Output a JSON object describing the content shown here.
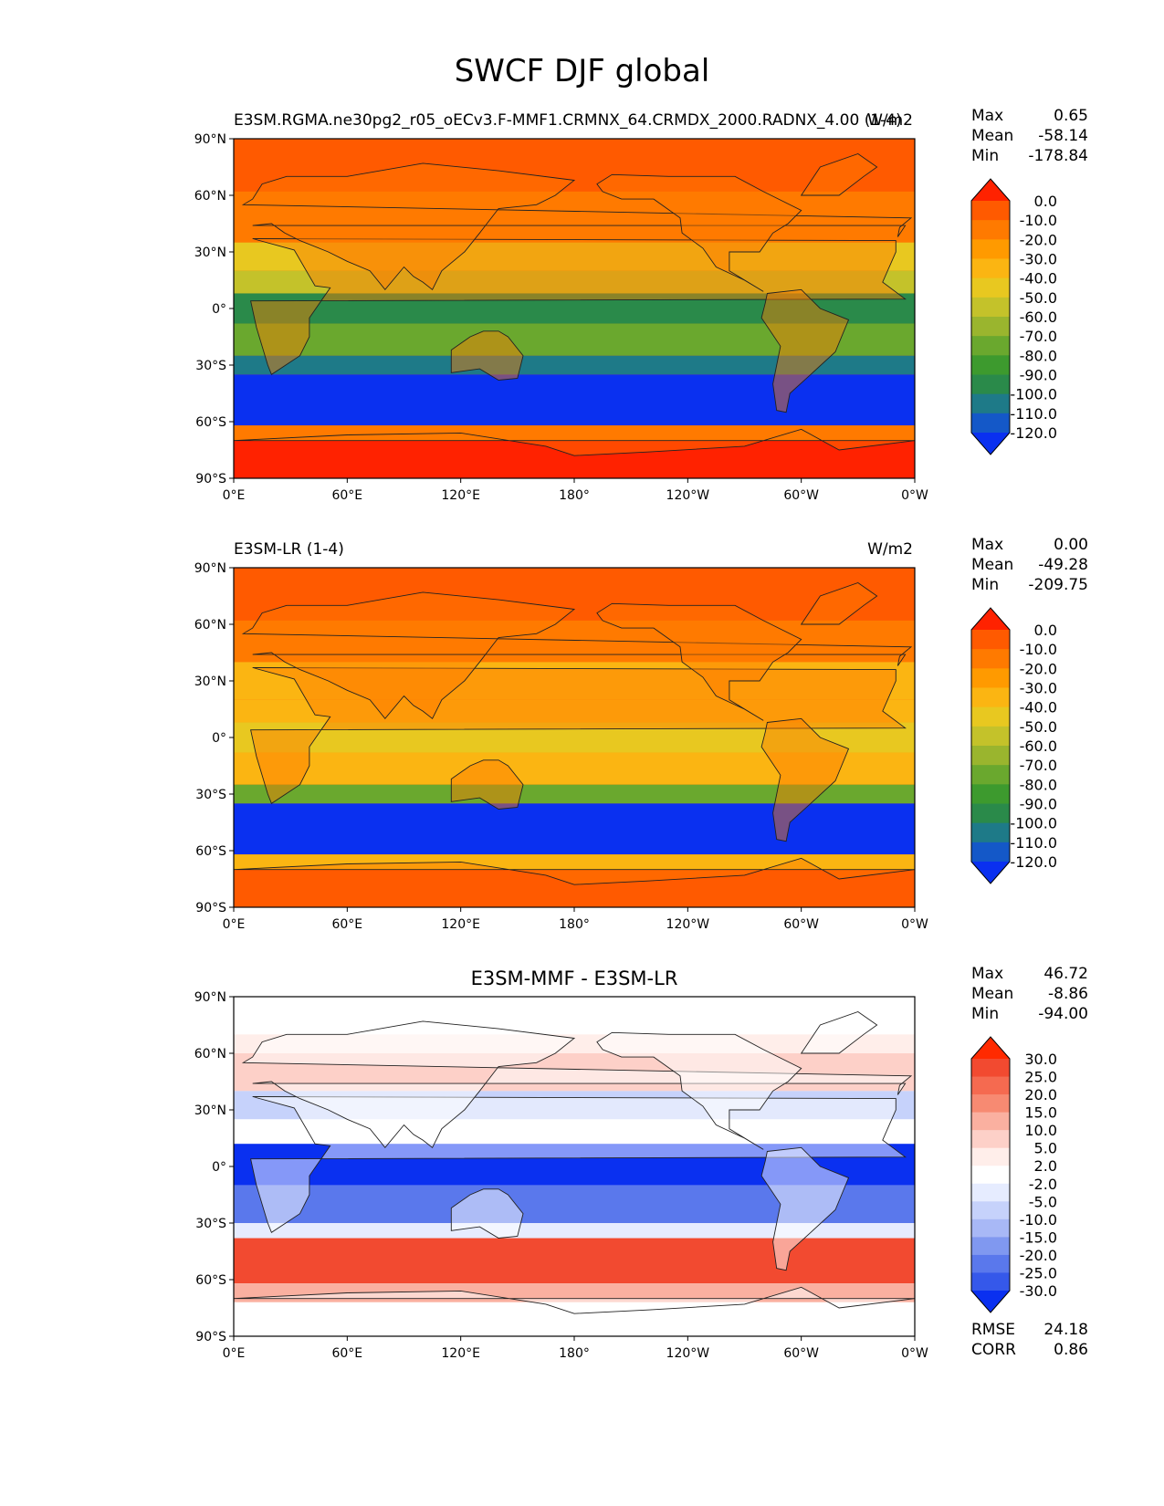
{
  "title": "SWCF DJF global",
  "chart_data": [
    {
      "type": "heatmap",
      "title_left": "E3SM.RGMA.ne30pg2_r05_oECv3.F-MMF1.CRMNX_64.CRMDX_2000.RADNX_4.00 (1-4)",
      "title_right": "W/m2",
      "stats": {
        "max_label": "Max",
        "max": "0.65",
        "mean_label": "Mean",
        "mean": "-58.14",
        "min_label": "Min",
        "min": "-178.84"
      },
      "colorbar_levels": [
        "0.0",
        "-10.0",
        "-20.0",
        "-30.0",
        "-40.0",
        "-50.0",
        "-60.0",
        "-70.0",
        "-80.0",
        "-90.0",
        "-100.0",
        "-110.0",
        "-120.0"
      ],
      "colormap": [
        "#ff2200",
        "#ff5a00",
        "#ff7a00",
        "#ff9a00",
        "#fbb512",
        "#e8c820",
        "#c4c22a",
        "#9ab52e",
        "#6aa82e",
        "#3d9a2e",
        "#2a8a4a",
        "#1e7a88",
        "#1458c8",
        "#0a30f0"
      ],
      "xticks": [
        "0°E",
        "60°E",
        "120°E",
        "180°",
        "120°W",
        "60°W",
        "0°W"
      ],
      "yticks": [
        "90°N",
        "60°N",
        "30°N",
        "0°",
        "30°S",
        "60°S",
        "90°S"
      ]
    },
    {
      "type": "heatmap",
      "title_left": "E3SM-LR (1-4)",
      "title_right": "W/m2",
      "stats": {
        "max_label": "Max",
        "max": "0.00",
        "mean_label": "Mean",
        "mean": "-49.28",
        "min_label": "Min",
        "min": "-209.75"
      },
      "colorbar_levels": [
        "0.0",
        "-10.0",
        "-20.0",
        "-30.0",
        "-40.0",
        "-50.0",
        "-60.0",
        "-70.0",
        "-80.0",
        "-90.0",
        "-100.0",
        "-110.0",
        "-120.0"
      ],
      "colormap": [
        "#ff2200",
        "#ff5a00",
        "#ff7a00",
        "#ff9a00",
        "#fbb512",
        "#e8c820",
        "#c4c22a",
        "#9ab52e",
        "#6aa82e",
        "#3d9a2e",
        "#2a8a4a",
        "#1e7a88",
        "#1458c8",
        "#0a30f0"
      ],
      "xticks": [
        "0°E",
        "60°E",
        "120°E",
        "180°",
        "120°W",
        "60°W",
        "0°W"
      ],
      "yticks": [
        "90°N",
        "60°N",
        "30°N",
        "0°",
        "30°S",
        "60°S",
        "90°S"
      ]
    },
    {
      "type": "heatmap",
      "title_center": "E3SM-MMF - E3SM-LR",
      "stats": {
        "max_label": "Max",
        "max": "46.72",
        "mean_label": "Mean",
        "mean": "-8.86",
        "min_label": "Min",
        "min": "-94.00"
      },
      "stats_extra": {
        "rmse_label": "RMSE",
        "rmse": "24.18",
        "corr_label": "CORR",
        "corr": "0.86"
      },
      "colorbar_levels": [
        "30.0",
        "25.0",
        "20.0",
        "15.0",
        "10.0",
        "5.0",
        "2.0",
        "-2.0",
        "-5.0",
        "-10.0",
        "-15.0",
        "-20.0",
        "-25.0",
        "-30.0"
      ],
      "colormap": [
        "#ff2a00",
        "#f24a30",
        "#f56a50",
        "#f78a72",
        "#fab0a0",
        "#fdd0c8",
        "#ffeeea",
        "#ffffff",
        "#e6ecff",
        "#c6d2fb",
        "#a8b8f6",
        "#8098f0",
        "#5a78ec",
        "#3558ea",
        "#0a30f0"
      ],
      "xticks": [
        "0°E",
        "60°E",
        "120°E",
        "180°",
        "120°W",
        "60°W",
        "0°W"
      ],
      "yticks": [
        "90°N",
        "60°N",
        "30°N",
        "0°",
        "30°S",
        "60°S",
        "90°S"
      ]
    }
  ]
}
